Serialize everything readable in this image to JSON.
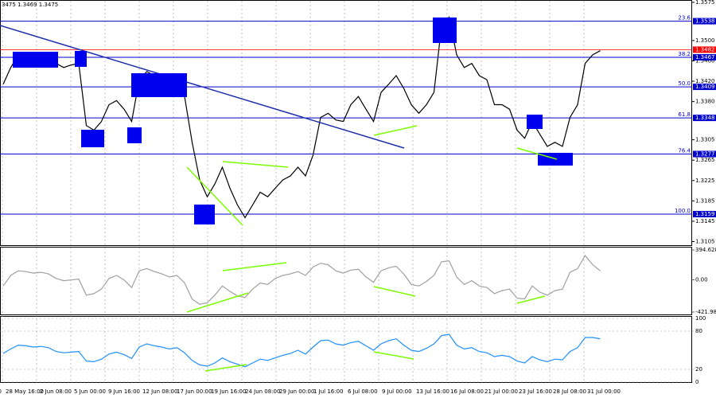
{
  "chart_data": {
    "type": "line",
    "title": "3475 1.3469 1.3475",
    "x_labels": [
      "0",
      "28 May 16:00",
      "2 Jun 08:00",
      "5 Jun 00:00",
      "9 Jun 16:00",
      "12 Jun 08:00",
      "17 Jun 00:00",
      "19 Jun 16:00",
      "24 Jun 08:00",
      "29 Jun 00:00",
      "1 Jul 16:00",
      "6 Jul 08:00",
      "9 Jul 00:00",
      "13 Jul 16:00",
      "16 Jul 08:00",
      "21 Jul 00:00",
      "23 Jul 16:00",
      "28 Jul 08:00",
      "31 Jul 00:00"
    ],
    "series": [
      {
        "color": "#000000",
        "values": [
          1.3414,
          1.3447,
          1.3472,
          1.3475,
          1.3469,
          1.3475,
          1.3472,
          1.3455,
          1.3447,
          1.3452,
          1.3455,
          1.3333,
          1.3324,
          1.3341,
          1.3374,
          1.3382,
          1.3365,
          1.3341,
          1.3423,
          1.3439,
          1.3431,
          1.3423,
          1.3414,
          1.3423,
          1.339,
          1.33,
          1.3226,
          1.3193,
          1.3218,
          1.3251,
          1.321,
          1.3177,
          1.3152,
          1.3177,
          1.3202,
          1.3193,
          1.321,
          1.3226,
          1.3234,
          1.3251,
          1.3234,
          1.3275,
          1.3349,
          1.3357,
          1.3344,
          1.3341,
          1.3374,
          1.339,
          1.3365,
          1.3341,
          1.3398,
          1.3414,
          1.3431,
          1.3406,
          1.3374,
          1.3357,
          1.3374,
          1.3398,
          1.3529,
          1.3546,
          1.3472,
          1.3447,
          1.3455,
          1.3431,
          1.3423,
          1.3374,
          1.3374,
          1.3365,
          1.3324,
          1.3308,
          1.3341,
          1.3316,
          1.3292,
          1.33,
          1.3292,
          1.3349,
          1.3374,
          1.3455,
          1.3472,
          1.348
        ]
      }
    ],
    "ylim": [
      1.3098,
      1.3578
    ],
    "yticks": [
      1.3575,
      {
        "value": 1.35,
        "label": "1.3500"
      },
      {
        "value": 1.346,
        "label": "1.3460"
      },
      {
        "value": 1.342,
        "label": "1.3420"
      },
      {
        "value": 1.338,
        "label": "1.3380"
      },
      1.3305,
      1.3265,
      1.3225,
      1.3185,
      1.3145,
      1.3105
    ],
    "current_price": 1.3482,
    "current_color": "#ff0000",
    "levels": [
      {
        "label": "23.6",
        "value": 1.3538
      },
      {
        "label": "38.2",
        "value": 1.3467
      },
      {
        "label": "50.0",
        "value": 1.3409
      },
      {
        "label": "61.8",
        "value": 1.3348
      },
      {
        "label": "76.4",
        "value": 1.3277
      },
      {
        "label": "100.0",
        "value": 1.3159
      }
    ],
    "level_color": "#0000cc",
    "cci": {
      "color": "#a0a0a0",
      "ylim": [
        -421.9874,
        394.6289
      ],
      "yticks": [
        394.6289,
        {
          "value": 0,
          "label": "0.00"
        },
        -421.9874
      ],
      "values": [
        -80,
        60,
        120,
        110,
        90,
        100,
        80,
        20,
        -10,
        0,
        10,
        -200,
        -180,
        -120,
        20,
        60,
        0,
        -100,
        120,
        150,
        110,
        80,
        40,
        60,
        -40,
        -250,
        -320,
        -300,
        -200,
        -80,
        -150,
        -210,
        -230,
        -120,
        -40,
        -60,
        20,
        60,
        80,
        110,
        60,
        170,
        220,
        200,
        120,
        90,
        130,
        140,
        40,
        -30,
        120,
        160,
        180,
        80,
        -60,
        -80,
        -20,
        60,
        240,
        250,
        40,
        -60,
        -10,
        -80,
        -100,
        -180,
        -140,
        -120,
        -240,
        -250,
        -80,
        -160,
        -200,
        -140,
        -120,
        100,
        150,
        320,
        200,
        120
      ]
    },
    "rsi": {
      "color": "#1e90ff",
      "ylim": [
        0,
        100
      ],
      "yticks": [
        100,
        80,
        20,
        0
      ],
      "values": [
        45,
        52,
        58,
        57,
        55,
        56,
        54,
        48,
        46,
        47,
        48,
        33,
        32,
        36,
        44,
        47,
        43,
        37,
        55,
        60,
        57,
        55,
        52,
        54,
        46,
        34,
        27,
        25,
        30,
        38,
        32,
        28,
        24,
        30,
        36,
        34,
        38,
        42,
        45,
        50,
        44,
        55,
        65,
        66,
        60,
        58,
        62,
        64,
        57,
        50,
        60,
        65,
        68,
        58,
        50,
        48,
        53,
        60,
        73,
        75,
        58,
        52,
        54,
        48,
        46,
        40,
        42,
        40,
        33,
        30,
        40,
        35,
        32,
        36,
        35,
        48,
        54,
        70,
        70,
        68
      ]
    }
  }
}
